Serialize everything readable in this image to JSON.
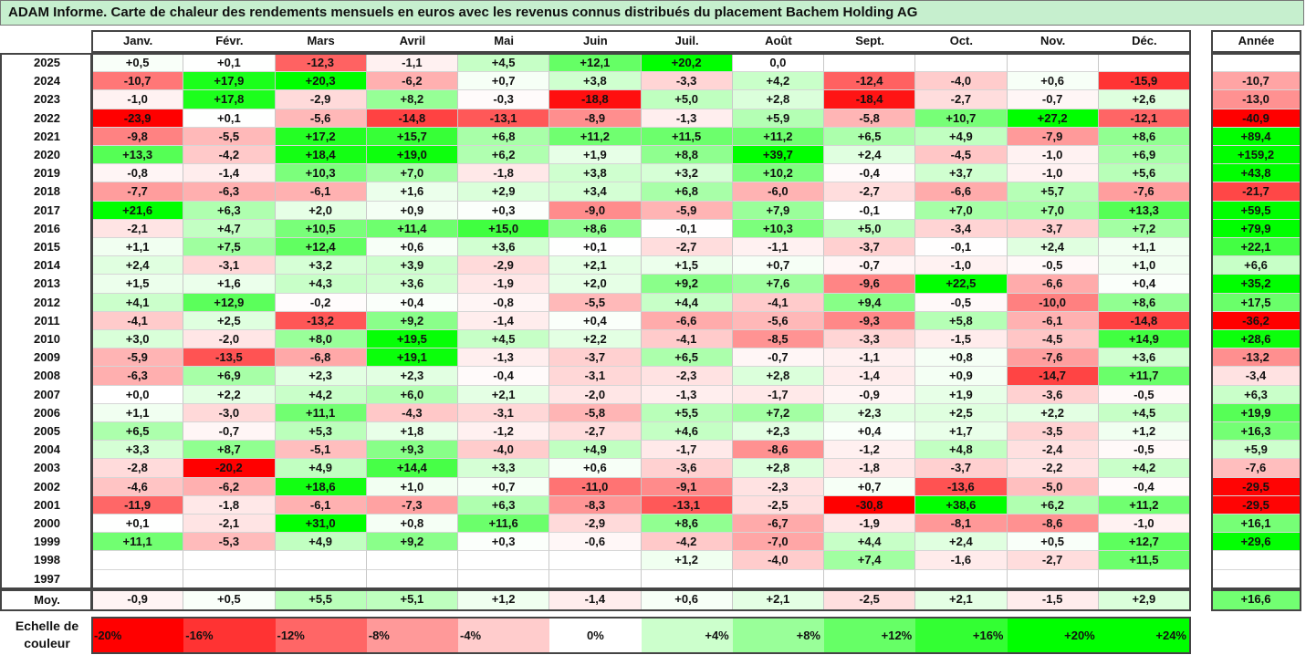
{
  "title": "ADAM Informe. Carte de chaleur des rendements mensuels en euros avec les revenus connus distribués du placement Bachem Holding AG",
  "chart_data": {
    "type": "heatmap",
    "columns": [
      "Janv.",
      "Févr.",
      "Mars",
      "Avril",
      "Mai",
      "Juin",
      "Juil.",
      "Août",
      "Sept.",
      "Oct.",
      "Nov.",
      "Déc."
    ],
    "annual_header": "Année",
    "rows": [
      {
        "year": "2025",
        "months": [
          "+0,5",
          "+0,1",
          "-12,3",
          "-1,1",
          "+4,5",
          "+12,1",
          "+20,2",
          "0,0",
          "",
          "",
          "",
          ""
        ],
        "annual": ""
      },
      {
        "year": "2024",
        "months": [
          "-10,7",
          "+17,9",
          "+20,3",
          "-6,2",
          "+0,7",
          "+3,8",
          "-3,3",
          "+4,2",
          "-12,4",
          "-4,0",
          "+0,6",
          "-15,9"
        ],
        "annual": "-10,7"
      },
      {
        "year": "2023",
        "months": [
          "-1,0",
          "+17,8",
          "-2,9",
          "+8,2",
          "-0,3",
          "-18,8",
          "+5,0",
          "+2,8",
          "-18,4",
          "-2,7",
          "-0,7",
          "+2,6"
        ],
        "annual": "-13,0"
      },
      {
        "year": "2022",
        "months": [
          "-23,9",
          "+0,1",
          "-5,6",
          "-14,8",
          "-13,1",
          "-8,9",
          "-1,3",
          "+5,9",
          "-5,8",
          "+10,7",
          "+27,2",
          "-12,1"
        ],
        "annual": "-40,9"
      },
      {
        "year": "2021",
        "months": [
          "-9,8",
          "-5,5",
          "+17,2",
          "+15,7",
          "+6,8",
          "+11,2",
          "+11,5",
          "+11,2",
          "+6,5",
          "+4,9",
          "-7,9",
          "+8,6"
        ],
        "annual": "+89,4"
      },
      {
        "year": "2020",
        "months": [
          "+13,3",
          "-4,2",
          "+18,4",
          "+19,0",
          "+6,2",
          "+1,9",
          "+8,8",
          "+39,7",
          "+2,4",
          "-4,5",
          "-1,0",
          "+6,9"
        ],
        "annual": "+159,2"
      },
      {
        "year": "2019",
        "months": [
          "-0,8",
          "-1,4",
          "+10,3",
          "+7,0",
          "-1,8",
          "+3,8",
          "+3,2",
          "+10,2",
          "-0,4",
          "+3,7",
          "-1,0",
          "+5,6"
        ],
        "annual": "+43,8"
      },
      {
        "year": "2018",
        "months": [
          "-7,7",
          "-6,3",
          "-6,1",
          "+1,6",
          "+2,9",
          "+3,4",
          "+6,8",
          "-6,0",
          "-2,7",
          "-6,6",
          "+5,7",
          "-7,6"
        ],
        "annual": "-21,7"
      },
      {
        "year": "2017",
        "months": [
          "+21,6",
          "+6,3",
          "+2,0",
          "+0,9",
          "+0,3",
          "-9,0",
          "-5,9",
          "+7,9",
          "-0,1",
          "+7,0",
          "+7,0",
          "+13,3"
        ],
        "annual": "+59,5"
      },
      {
        "year": "2016",
        "months": [
          "-2,1",
          "+4,7",
          "+10,5",
          "+11,4",
          "+15,0",
          "+8,6",
          "-0,1",
          "+10,3",
          "+5,0",
          "-3,4",
          "-3,7",
          "+7,2"
        ],
        "annual": "+79,9"
      },
      {
        "year": "2015",
        "months": [
          "+1,1",
          "+7,5",
          "+12,4",
          "+0,6",
          "+3,6",
          "+0,1",
          "-2,7",
          "-1,1",
          "-3,7",
          "-0,1",
          "+2,4",
          "+1,1"
        ],
        "annual": "+22,1"
      },
      {
        "year": "2014",
        "months": [
          "+2,4",
          "-3,1",
          "+3,2",
          "+3,9",
          "-2,9",
          "+2,1",
          "+1,5",
          "+0,7",
          "-0,7",
          "-1,0",
          "-0,5",
          "+1,0"
        ],
        "annual": "+6,6"
      },
      {
        "year": "2013",
        "months": [
          "+1,5",
          "+1,6",
          "+4,3",
          "+3,6",
          "-1,9",
          "+2,0",
          "+9,2",
          "+7,6",
          "-9,6",
          "+22,5",
          "-6,6",
          "+0,4"
        ],
        "annual": "+35,2"
      },
      {
        "year": "2012",
        "months": [
          "+4,1",
          "+12,9",
          "-0,2",
          "+0,4",
          "-0,8",
          "-5,5",
          "+4,4",
          "-4,1",
          "+9,4",
          "-0,5",
          "-10,0",
          "+8,6"
        ],
        "annual": "+17,5"
      },
      {
        "year": "2011",
        "months": [
          "-4,1",
          "+2,5",
          "-13,2",
          "+9,2",
          "-1,4",
          "+0,4",
          "-6,6",
          "-5,6",
          "-9,3",
          "+5,8",
          "-6,1",
          "-14,8"
        ],
        "annual": "-36,2"
      },
      {
        "year": "2010",
        "months": [
          "+3,0",
          "-2,0",
          "+8,0",
          "+19,5",
          "+4,5",
          "+2,2",
          "-4,1",
          "-8,5",
          "-3,3",
          "-1,5",
          "-4,5",
          "+14,9"
        ],
        "annual": "+28,6"
      },
      {
        "year": "2009",
        "months": [
          "-5,9",
          "-13,5",
          "-6,8",
          "+19,1",
          "-1,3",
          "-3,7",
          "+6,5",
          "-0,7",
          "-1,1",
          "+0,8",
          "-7,6",
          "+3,6"
        ],
        "annual": "-13,2"
      },
      {
        "year": "2008",
        "months": [
          "-6,3",
          "+6,9",
          "+2,3",
          "+2,3",
          "-0,4",
          "-3,1",
          "-2,3",
          "+2,8",
          "-1,4",
          "+0,9",
          "-14,7",
          "+11,7"
        ],
        "annual": "-3,4"
      },
      {
        "year": "2007",
        "months": [
          "+0,0",
          "+2,2",
          "+4,2",
          "+6,0",
          "+2,1",
          "-2,0",
          "-1,3",
          "-1,7",
          "-0,9",
          "+1,9",
          "-3,6",
          "-0,5"
        ],
        "annual": "+6,3"
      },
      {
        "year": "2006",
        "months": [
          "+1,1",
          "-3,0",
          "+11,1",
          "-4,3",
          "-3,1",
          "-5,8",
          "+5,5",
          "+7,2",
          "+2,3",
          "+2,5",
          "+2,2",
          "+4,5"
        ],
        "annual": "+19,9"
      },
      {
        "year": "2005",
        "months": [
          "+6,5",
          "-0,7",
          "+5,3",
          "+1,8",
          "-1,2",
          "-2,7",
          "+4,6",
          "+2,3",
          "+0,4",
          "+1,7",
          "-3,5",
          "+1,2"
        ],
        "annual": "+16,3"
      },
      {
        "year": "2004",
        "months": [
          "+3,3",
          "+8,7",
          "-5,1",
          "+9,3",
          "-4,0",
          "+4,9",
          "-1,7",
          "-8,6",
          "-1,2",
          "+4,8",
          "-2,4",
          "-0,5"
        ],
        "annual": "+5,9"
      },
      {
        "year": "2003",
        "months": [
          "-2,8",
          "-20,2",
          "+4,9",
          "+14,4",
          "+3,3",
          "+0,6",
          "-3,6",
          "+2,8",
          "-1,8",
          "-3,7",
          "-2,2",
          "+4,2"
        ],
        "annual": "-7,6"
      },
      {
        "year": "2002",
        "months": [
          "-4,6",
          "-6,2",
          "+18,6",
          "+1,0",
          "+0,7",
          "-11,0",
          "-9,1",
          "-2,3",
          "+0,7",
          "-13,6",
          "-5,0",
          "-0,4"
        ],
        "annual": "-29,5"
      },
      {
        "year": "2001",
        "months": [
          "-11,9",
          "-1,8",
          "-6,1",
          "-7,3",
          "+6,3",
          "-8,3",
          "-13,1",
          "-2,5",
          "-30,8",
          "+38,6",
          "+6,2",
          "+11,2"
        ],
        "annual": "-29,5"
      },
      {
        "year": "2000",
        "months": [
          "+0,1",
          "-2,1",
          "+31,0",
          "+0,8",
          "+11,6",
          "-2,9",
          "+8,6",
          "-6,7",
          "-1,9",
          "-8,1",
          "-8,6",
          "-1,0"
        ],
        "annual": "+16,1"
      },
      {
        "year": "1999",
        "months": [
          "+11,1",
          "-5,3",
          "+4,9",
          "+9,2",
          "+0,3",
          "-0,6",
          "-4,2",
          "-7,0",
          "+4,4",
          "+2,4",
          "+0,5",
          "+12,7"
        ],
        "annual": "+29,6"
      },
      {
        "year": "1998",
        "months": [
          "",
          "",
          "",
          "",
          "",
          "",
          "+1,2",
          "-4,0",
          "+7,4",
          "-1,6",
          "-2,7",
          "+11,5"
        ],
        "annual": ""
      },
      {
        "year": "1997",
        "months": [
          "",
          "",
          "",
          "",
          "",
          "",
          "",
          "",
          "",
          "",
          "",
          ""
        ],
        "annual": ""
      }
    ],
    "average": {
      "label": "Moy.",
      "months": [
        "-0,9",
        "+0,5",
        "+5,5",
        "+5,1",
        "+1,2",
        "-1,4",
        "+0,6",
        "+2,1",
        "-2,5",
        "+2,1",
        "-1,5",
        "+2,9"
      ],
      "annual": "+16,6"
    },
    "scale": {
      "label": "Echelle de couleur",
      "items": [
        {
          "text": "-20%",
          "color": "#ff0000",
          "align": "left"
        },
        {
          "text": "-16%",
          "color": "#ff3333",
          "align": "left"
        },
        {
          "text": "-12%",
          "color": "#ff6666",
          "align": "left"
        },
        {
          "text": "-8%",
          "color": "#ff9999",
          "align": "left"
        },
        {
          "text": "-4%",
          "color": "#ffcccc",
          "align": "left"
        },
        {
          "text": "0%",
          "color": "#ffffff",
          "align": "center"
        },
        {
          "text": "+4%",
          "color": "#ccffcc",
          "align": "right"
        },
        {
          "text": "+8%",
          "color": "#99ff99",
          "align": "right"
        },
        {
          "text": "+12%",
          "color": "#66ff66",
          "align": "right"
        },
        {
          "text": "+16%",
          "color": "#33ff33",
          "align": "right"
        },
        {
          "text": "+20%",
          "color": "#00ff00",
          "align": "right"
        },
        {
          "text": "+24%",
          "color": "#00ff00",
          "align": "right"
        }
      ]
    }
  }
}
